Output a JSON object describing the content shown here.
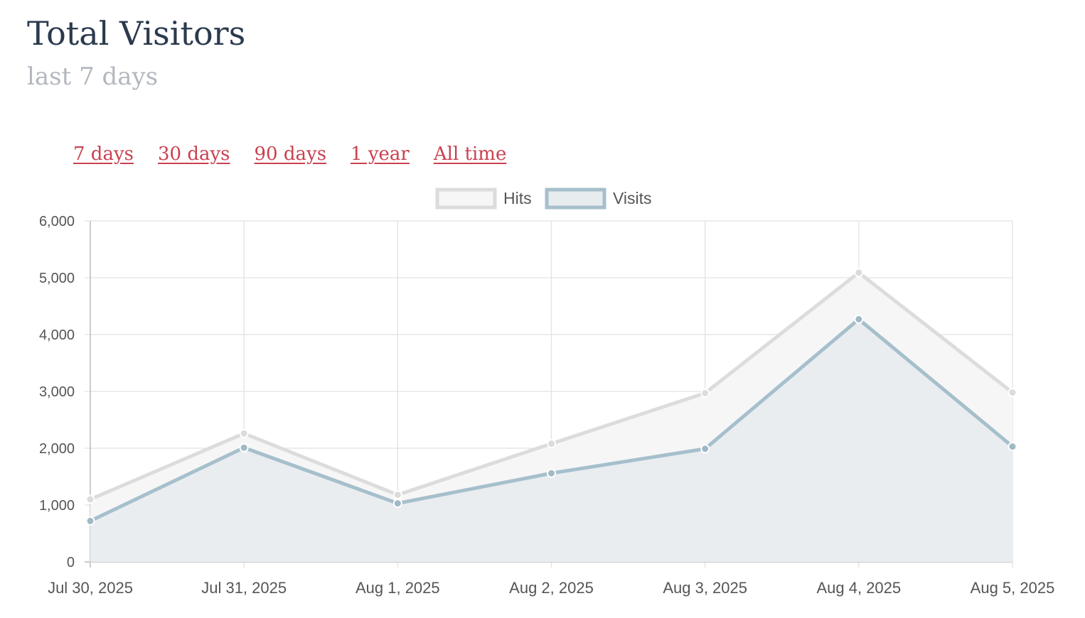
{
  "header": {
    "title": "Total Visitors",
    "subtitle": "last 7 days"
  },
  "ranges": [
    {
      "label": "7 days"
    },
    {
      "label": "30 days"
    },
    {
      "label": "90 days"
    },
    {
      "label": "1 year"
    },
    {
      "label": "All time"
    }
  ],
  "colors": {
    "link": "#c94150",
    "grid": "#e2e2e2",
    "hits_line": "#dcdcdc",
    "hits_fill": "#f6f6f6",
    "visits_line": "#a6bfcc",
    "visits_fill": "#e7ecef"
  },
  "chart_data": {
    "type": "area",
    "title": "",
    "xlabel": "",
    "ylabel": "",
    "categories": [
      "Jul 30, 2025",
      "Jul 31, 2025",
      "Aug 1, 2025",
      "Aug 2, 2025",
      "Aug 3, 2025",
      "Aug 4, 2025",
      "Aug 5, 2025"
    ],
    "yticks": [
      "0",
      "1,000",
      "2,000",
      "3,000",
      "4,000",
      "5,000",
      "6,000"
    ],
    "ylim": [
      0,
      6000
    ],
    "grid": true,
    "legend_position": "top-center",
    "series": [
      {
        "name": "Hits",
        "values": [
          1100,
          2260,
          1180,
          2080,
          2970,
          5090,
          2980
        ]
      },
      {
        "name": "Visits",
        "values": [
          720,
          2010,
          1030,
          1560,
          1990,
          4270,
          2030
        ]
      }
    ]
  }
}
